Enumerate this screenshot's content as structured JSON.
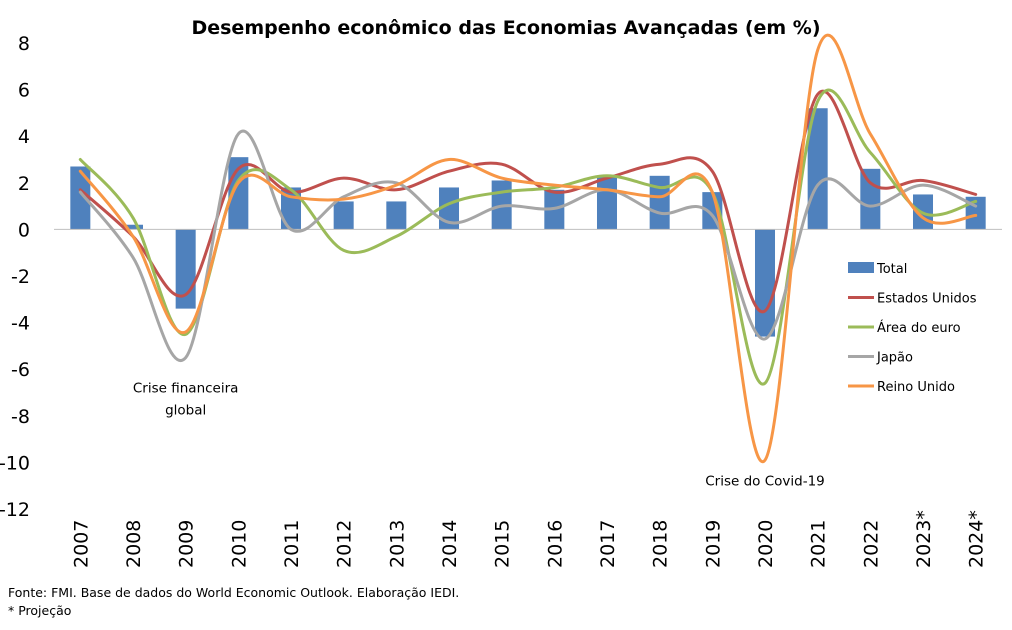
{
  "chart_data": {
    "type": "bar",
    "title": "Desempenho econômico das Economias Avançadas (em %)",
    "categories": [
      "2007",
      "2008",
      "2009",
      "2010",
      "2011",
      "2012",
      "2013",
      "2014",
      "2015",
      "2016",
      "2017",
      "2018",
      "2019",
      "2020",
      "2021",
      "2022",
      "2023*",
      "2024*"
    ],
    "ylim": [
      -12,
      8
    ],
    "yticks": [
      8,
      6,
      4,
      2,
      0,
      -2,
      -4,
      -6,
      -8,
      -10,
      -12
    ],
    "legend_position": "right",
    "grid": false,
    "series": [
      {
        "name": "Total",
        "type": "bar",
        "color": "#4f81bd",
        "values": [
          2.7,
          0.2,
          -3.4,
          3.1,
          1.8,
          1.2,
          1.2,
          1.8,
          2.1,
          1.7,
          2.3,
          2.3,
          1.6,
          -4.6,
          5.2,
          2.6,
          1.5,
          1.4
        ]
      },
      {
        "name": "Estados Unidos",
        "type": "line",
        "color": "#c0504d",
        "values": [
          1.7,
          -0.3,
          -2.8,
          2.6,
          1.6,
          2.2,
          1.7,
          2.5,
          2.8,
          1.6,
          2.2,
          2.8,
          2.5,
          -3.5,
          5.8,
          2.0,
          2.1,
          1.5
        ]
      },
      {
        "name": "Área do euro",
        "type": "line",
        "color": "#9bbb59",
        "values": [
          3.0,
          0.5,
          -4.5,
          2.1,
          1.7,
          -0.9,
          -0.3,
          1.1,
          1.6,
          1.8,
          2.3,
          1.8,
          1.6,
          -6.6,
          5.5,
          3.3,
          0.7,
          1.2
        ]
      },
      {
        "name": "Japão",
        "type": "line",
        "color": "#a6a6a6",
        "values": [
          1.6,
          -1.2,
          -5.5,
          4.1,
          0.0,
          1.4,
          2.0,
          0.3,
          1.0,
          0.9,
          1.7,
          0.7,
          0.6,
          -4.7,
          1.9,
          1.0,
          1.9,
          1.0
        ]
      },
      {
        "name": "Reino Unido",
        "type": "line",
        "color": "#f79646",
        "values": [
          2.5,
          -0.3,
          -4.4,
          2.0,
          1.4,
          1.3,
          1.9,
          3.0,
          2.2,
          1.9,
          1.7,
          1.4,
          1.6,
          -9.9,
          7.7,
          4.1,
          0.5,
          0.6
        ]
      }
    ],
    "annotations": [
      {
        "text_lines": [
          "Crise financeira",
          "global"
        ],
        "category": "2009",
        "y": -7.0
      },
      {
        "text_lines": [
          "Crise do Covid-19"
        ],
        "category": "2020",
        "y": -11.0
      }
    ]
  },
  "footer": {
    "source": "Fonte: FMI. Base de dados do World Economic Outlook. Elaboração IEDI.",
    "note": "* Projeção"
  }
}
